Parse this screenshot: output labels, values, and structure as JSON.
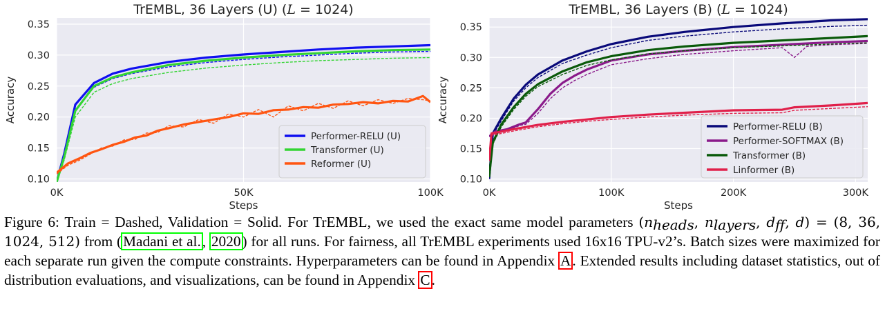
{
  "chart_data": [
    {
      "type": "line",
      "title_main": "TrEMBL, 36 Layers (U) (",
      "title_math": "L",
      "title_eq": " = 1024)",
      "xlabel": "Steps",
      "ylabel": "Accuracy",
      "xlim": [
        0,
        100000
      ],
      "ylim": [
        0.095,
        0.36
      ],
      "xticks": [
        0,
        50000,
        100000
      ],
      "xticklabels": [
        "0K",
        "50K",
        "100K"
      ],
      "yticks": [
        0.1,
        0.15,
        0.2,
        0.25,
        0.3,
        0.35
      ],
      "yticklabels": [
        "0.10",
        "0.15",
        "0.20",
        "0.25",
        "0.30",
        "0.35"
      ],
      "grid": true,
      "legend_position": "lower-right",
      "series": [
        {
          "name": "Performer-RELU (U)",
          "color": "#1010f0",
          "validation": {
            "x": [
              0,
              2000,
              5000,
              10000,
              15000,
              20000,
              30000,
              40000,
              50000,
              60000,
              70000,
              80000,
              90000,
              100000
            ],
            "y": [
              0.095,
              0.14,
              0.22,
              0.255,
              0.27,
              0.278,
              0.289,
              0.296,
              0.301,
              0.305,
              0.309,
              0.312,
              0.314,
              0.316
            ]
          },
          "train": {
            "x": [
              0,
              2000,
              5000,
              10000,
              15000,
              20000,
              30000,
              40000,
              50000,
              60000,
              70000,
              80000,
              90000,
              100000
            ],
            "y": [
              0.095,
              0.138,
              0.212,
              0.248,
              0.262,
              0.27,
              0.281,
              0.288,
              0.293,
              0.297,
              0.3,
              0.303,
              0.305,
              0.306
            ]
          }
        },
        {
          "name": "Transformer (U)",
          "color": "#33d433",
          "validation": {
            "x": [
              0,
              2000,
              5000,
              10000,
              15000,
              20000,
              30000,
              40000,
              50000,
              60000,
              70000,
              80000,
              90000,
              100000
            ],
            "y": [
              0.095,
              0.135,
              0.21,
              0.25,
              0.264,
              0.272,
              0.284,
              0.291,
              0.296,
              0.3,
              0.303,
              0.306,
              0.308,
              0.309
            ]
          },
          "train": {
            "x": [
              0,
              2000,
              5000,
              10000,
              15000,
              20000,
              30000,
              40000,
              50000,
              60000,
              70000,
              80000,
              90000,
              100000
            ],
            "y": [
              0.095,
              0.13,
              0.2,
              0.24,
              0.254,
              0.262,
              0.272,
              0.279,
              0.284,
              0.288,
              0.291,
              0.293,
              0.295,
              0.296
            ]
          }
        },
        {
          "name": "Reformer (U)",
          "color": "#ff5511",
          "validation": {
            "x": [
              0,
              3000,
              6000,
              9000,
              12000,
              15000,
              18000,
              21000,
              24000,
              27000,
              30000,
              34000,
              38000,
              42000,
              46000,
              50000,
              54000,
              58000,
              62000,
              66000,
              70000,
              74000,
              78000,
              82000,
              86000,
              90000,
              94000,
              98000,
              100000
            ],
            "y": [
              0.11,
              0.125,
              0.133,
              0.142,
              0.148,
              0.155,
              0.16,
              0.167,
              0.17,
              0.178,
              0.182,
              0.188,
              0.192,
              0.196,
              0.2,
              0.206,
              0.205,
              0.211,
              0.212,
              0.216,
              0.215,
              0.22,
              0.221,
              0.224,
              0.222,
              0.226,
              0.225,
              0.234,
              0.224
            ]
          },
          "train": {
            "x": [
              0,
              3000,
              6000,
              9000,
              12000,
              15000,
              18000,
              21000,
              24000,
              27000,
              30000,
              34000,
              38000,
              42000,
              46000,
              50000,
              54000,
              58000,
              62000,
              66000,
              70000,
              74000,
              78000,
              82000,
              86000,
              90000,
              94000,
              98000,
              100000
            ],
            "y": [
              0.108,
              0.122,
              0.13,
              0.14,
              0.15,
              0.153,
              0.163,
              0.164,
              0.174,
              0.175,
              0.186,
              0.184,
              0.196,
              0.19,
              0.205,
              0.2,
              0.212,
              0.2,
              0.218,
              0.21,
              0.222,
              0.214,
              0.226,
              0.218,
              0.228,
              0.222,
              0.23,
              0.228,
              0.226
            ]
          }
        }
      ]
    },
    {
      "type": "line",
      "title_main": "TrEMBL, 36 Layers (B) (",
      "title_math": "L",
      "title_eq": " = 1024)",
      "xlabel": "Steps",
      "ylabel": "Accuracy",
      "xlim": [
        0,
        310000
      ],
      "ylim": [
        0.095,
        0.365
      ],
      "xticks": [
        0,
        100000,
        200000,
        300000
      ],
      "xticklabels": [
        "0K",
        "100K",
        "200K",
        "300K"
      ],
      "yticks": [
        0.1,
        0.15,
        0.2,
        0.25,
        0.3,
        0.35
      ],
      "yticklabels": [
        "0.10",
        "0.15",
        "0.20",
        "0.25",
        "0.30",
        "0.35"
      ],
      "grid": true,
      "legend_position": "lower-right",
      "series": [
        {
          "name": "Performer-RELU (B)",
          "color": "#0a0a7a",
          "validation": {
            "x": [
              0,
              3000,
              10000,
              20000,
              30000,
              40000,
              60000,
              80000,
              100000,
              130000,
              160000,
              200000,
              240000,
              280000,
              310000
            ],
            "y": [
              0.1,
              0.175,
              0.2,
              0.232,
              0.255,
              0.272,
              0.295,
              0.31,
              0.322,
              0.334,
              0.342,
              0.35,
              0.356,
              0.361,
              0.363
            ]
          },
          "train": {
            "x": [
              0,
              3000,
              10000,
              20000,
              30000,
              40000,
              60000,
              80000,
              100000,
              130000,
              160000,
              200000,
              240000,
              280000,
              310000
            ],
            "y": [
              0.1,
              0.172,
              0.196,
              0.228,
              0.25,
              0.267,
              0.29,
              0.304,
              0.316,
              0.328,
              0.335,
              0.342,
              0.347,
              0.351,
              0.353
            ]
          }
        },
        {
          "name": "Performer-SOFTMAX (B)",
          "color": "#8a1a8a",
          "validation": {
            "x": [
              0,
              5000,
              15000,
              25000,
              30000,
              40000,
              50000,
              60000,
              70000,
              80000,
              100000,
              130000,
              160000,
              200000,
              240000,
              280000,
              310000
            ],
            "y": [
              0.17,
              0.178,
              0.182,
              0.19,
              0.193,
              0.215,
              0.24,
              0.258,
              0.27,
              0.28,
              0.295,
              0.305,
              0.311,
              0.317,
              0.321,
              0.325,
              0.327
            ]
          },
          "train": {
            "x": [
              0,
              5000,
              15000,
              25000,
              30000,
              40000,
              50000,
              60000,
              70000,
              80000,
              100000,
              130000,
              160000,
              200000,
              240000,
              250000,
              260000,
              280000,
              310000
            ],
            "y": [
              0.17,
              0.175,
              0.18,
              0.188,
              0.19,
              0.208,
              0.232,
              0.25,
              0.262,
              0.272,
              0.288,
              0.298,
              0.305,
              0.311,
              0.316,
              0.3,
              0.318,
              0.321,
              0.323
            ]
          }
        },
        {
          "name": "Transformer (B)",
          "color": "#0a5a0a",
          "validation": {
            "x": [
              0,
              3000,
              10000,
              20000,
              30000,
              40000,
              60000,
              80000,
              100000,
              130000,
              160000,
              200000,
              240000,
              280000,
              310000
            ],
            "y": [
              0.103,
              0.16,
              0.19,
              0.218,
              0.24,
              0.256,
              0.277,
              0.292,
              0.302,
              0.312,
              0.318,
              0.324,
              0.328,
              0.332,
              0.335
            ]
          },
          "train": {
            "x": [
              0,
              3000,
              10000,
              20000,
              30000,
              40000,
              60000,
              80000,
              100000,
              130000,
              160000,
              200000,
              240000,
              280000,
              310000
            ],
            "y": [
              0.103,
              0.157,
              0.186,
              0.214,
              0.236,
              0.252,
              0.272,
              0.287,
              0.296,
              0.306,
              0.311,
              0.316,
              0.319,
              0.322,
              0.324
            ]
          }
        },
        {
          "name": "Linformer (B)",
          "color": "#e0204a",
          "validation": {
            "x": [
              0,
              2000,
              10000,
              20000,
              40000,
              60000,
              80000,
              100000,
              130000,
              160000,
              200000,
              240000,
              250000,
              280000,
              310000
            ],
            "y": [
              0.13,
              0.175,
              0.178,
              0.182,
              0.189,
              0.194,
              0.198,
              0.202,
              0.206,
              0.209,
              0.213,
              0.214,
              0.218,
              0.221,
              0.225
            ]
          },
          "train": {
            "x": [
              0,
              2000,
              10000,
              20000,
              40000,
              60000,
              80000,
              100000,
              130000,
              160000,
              200000,
              240000,
              250000,
              280000,
              310000
            ],
            "y": [
              0.13,
              0.172,
              0.175,
              0.179,
              0.186,
              0.191,
              0.195,
              0.198,
              0.202,
              0.205,
              0.208,
              0.209,
              0.213,
              0.216,
              0.219
            ]
          }
        }
      ]
    }
  ],
  "caption": {
    "label": "Figure 6:",
    "text1": " Train = Dashed, Validation = Solid. For TrEMBL, we used the exact same model parameters",
    "math_lhs_open": "(",
    "math_n": "n",
    "math_heads": "heads",
    "math_sep1": ", ",
    "math_layers": "layers",
    "math_sep2": ", ",
    "math_d": "d",
    "math_ff": "ff",
    "math_sep3": ", ",
    "math_d2": "d",
    "math_rhs": ") = (8, 36, 1024, 512)",
    "text2": " from (",
    "cite_author": "Madani et al.",
    "cite_sep": ", ",
    "cite_year": "2020",
    "text3": ") for all runs. For fairness, all TrEMBL experiments used 16x16 TPU-v2’s. Batch sizes were maximized for each separate run given the compute constraints. Hyperparameters can be found in Appendix ",
    "ref_a": "A",
    "text4": ". Extended results including dataset statistics, out of distribution evaluations, and visualizations, can be found in Appendix ",
    "ref_c": "C",
    "text5": "."
  }
}
